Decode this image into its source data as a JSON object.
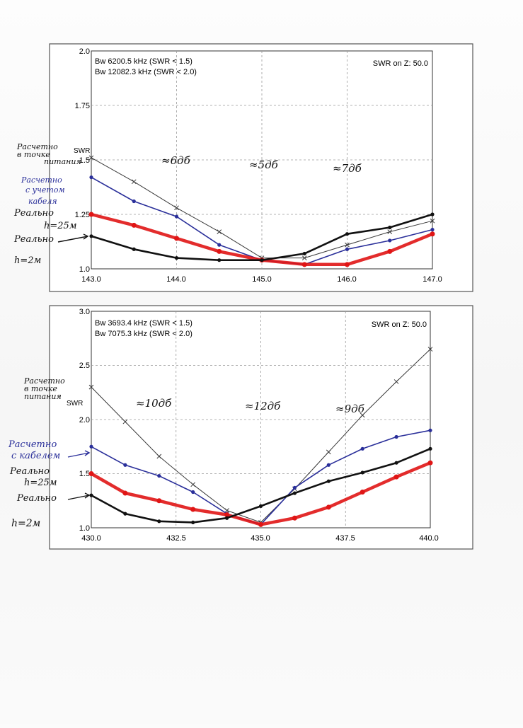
{
  "colors": {
    "computed_feedpoint": "#3a3a3a",
    "computed_with_cable": "#2a2f9a",
    "measured_h25": "#e01515",
    "measured_h2": "#111111",
    "grid": "#9a9a9a",
    "annotation_blue": "#2a2f9a"
  },
  "chart_data": [
    {
      "type": "line",
      "info_lines": [
        "Bw 6200.5 kHz (SWR < 1.5)",
        "Bw 12082.3 kHz (SWR < 2.0)"
      ],
      "z_label": "SWR on Z: 50.0",
      "y_title": "SWR",
      "x_ticks": [
        "143.0",
        "144.0",
        "145.0",
        "146.0",
        "147.0"
      ],
      "y_ticks": [
        "1.0",
        "1.25",
        "1.5",
        "1.75",
        "2.0"
      ],
      "xlim": [
        143.0,
        147.0
      ],
      "ylim": [
        1.0,
        2.0
      ],
      "grid": true,
      "series": [
        {
          "x": [
            143.0,
            143.5,
            144.0,
            144.5,
            145.0,
            145.5,
            146.0,
            146.5,
            147.0
          ],
          "values": [
            1.51,
            1.4,
            1.28,
            1.17,
            1.05,
            1.05,
            1.11,
            1.17,
            1.22
          ]
        },
        {
          "x": [
            143.0,
            143.5,
            144.0,
            144.5,
            145.0,
            145.5,
            146.0,
            146.5,
            147.0
          ],
          "values": [
            1.42,
            1.31,
            1.24,
            1.11,
            1.04,
            1.02,
            1.09,
            1.13,
            1.18
          ]
        },
        {
          "x": [
            143.0,
            143.5,
            144.0,
            144.5,
            145.0,
            145.5,
            146.0,
            146.5,
            147.0
          ],
          "values": [
            1.25,
            1.2,
            1.14,
            1.08,
            1.04,
            1.02,
            1.02,
            1.08,
            1.16
          ]
        },
        {
          "x": [
            143.0,
            143.5,
            144.0,
            144.5,
            145.0,
            145.5,
            146.0,
            146.5,
            147.0
          ],
          "values": [
            1.15,
            1.09,
            1.05,
            1.04,
            1.04,
            1.07,
            1.16,
            1.19,
            1.25
          ]
        }
      ],
      "band_annotations": [
        "≈6дб",
        "≈5дб",
        "≈7дб"
      ]
    },
    {
      "type": "line",
      "info_lines": [
        "Bw 3693.4 kHz (SWR < 1.5)",
        "Bw 7075.3 kHz (SWR < 2.0)"
      ],
      "z_label": "SWR on Z: 50.0",
      "y_title": "SWR",
      "x_ticks": [
        "430.0",
        "432.5",
        "435.0",
        "437.5",
        "440.0"
      ],
      "y_ticks": [
        "1.0",
        "1.5",
        "2.0",
        "2.5",
        "3.0"
      ],
      "xlim": [
        430.0,
        440.0
      ],
      "ylim": [
        1.0,
        3.0
      ],
      "grid": true,
      "series": [
        {
          "x": [
            430.0,
            431.0,
            432.0,
            433.0,
            434.0,
            435.0,
            436.0,
            437.0,
            438.0,
            439.0,
            440.0
          ],
          "values": [
            2.3,
            1.98,
            1.66,
            1.4,
            1.16,
            1.05,
            1.36,
            1.7,
            2.04,
            2.35,
            2.65
          ]
        },
        {
          "x": [
            430.0,
            431.0,
            432.0,
            433.0,
            434.0,
            435.0,
            436.0,
            437.0,
            438.0,
            439.0,
            440.0
          ],
          "values": [
            1.75,
            1.58,
            1.48,
            1.33,
            1.13,
            1.03,
            1.37,
            1.58,
            1.73,
            1.84,
            1.9
          ]
        },
        {
          "x": [
            430.0,
            431.0,
            432.0,
            433.0,
            434.0,
            435.0,
            436.0,
            437.0,
            438.0,
            439.0,
            440.0
          ],
          "values": [
            1.5,
            1.32,
            1.25,
            1.17,
            1.12,
            1.03,
            1.09,
            1.19,
            1.33,
            1.47,
            1.6
          ]
        },
        {
          "x": [
            430.0,
            431.0,
            432.0,
            433.0,
            434.0,
            435.0,
            436.0,
            437.0,
            438.0,
            439.0,
            440.0
          ],
          "values": [
            1.3,
            1.13,
            1.06,
            1.05,
            1.09,
            1.2,
            1.32,
            1.43,
            1.51,
            1.6,
            1.73
          ]
        }
      ],
      "band_annotations": [
        "≈10дб",
        "≈12дб",
        "≈9дб"
      ]
    }
  ],
  "top_left_notes": {
    "computed_feedpoint": [
      "Расчетно",
      "в точке",
      "питания"
    ],
    "computed_with_cable": [
      "Расчетно",
      "с учетом",
      "кабеля"
    ],
    "measured_h25": [
      "Реально",
      "h=25м"
    ],
    "measured_h2": [
      "Реально",
      "h=2м"
    ]
  },
  "bottom_left_notes": {
    "computed_feedpoint": [
      "Расчетно",
      "в точке",
      "питания"
    ],
    "computed_with_cable": [
      "Расчетно",
      "с кабелем"
    ],
    "measured_h25": [
      "Реально",
      "h=25м"
    ],
    "measured_h2": [
      "Реально",
      "h=2м"
    ]
  }
}
